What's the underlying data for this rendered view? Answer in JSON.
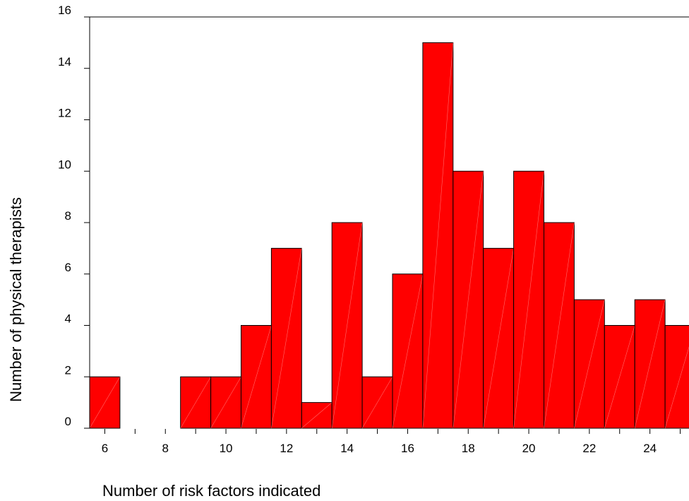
{
  "chart_data": {
    "type": "bar",
    "title": "",
    "xlabel": "Number of risk factors indicated",
    "ylabel": "Number of physical therapists",
    "bar_color": "#ff0000",
    "x": [
      6,
      7,
      8,
      9,
      10,
      11,
      12,
      13,
      14,
      15,
      16,
      17,
      18,
      19,
      20,
      21,
      22,
      23,
      24,
      25
    ],
    "values": [
      2,
      0,
      0,
      2,
      2,
      4,
      7,
      1,
      8,
      2,
      6,
      15,
      10,
      7,
      10,
      8,
      5,
      4,
      5,
      4
    ],
    "x_ticks": [
      "6",
      "8",
      "10",
      "12",
      "14",
      "16",
      "18",
      "20",
      "22",
      "24"
    ],
    "y_ticks": [
      "0",
      "2",
      "4",
      "6",
      "8",
      "10",
      "12",
      "14",
      "16"
    ],
    "ylim": [
      0,
      16
    ],
    "xlim": [
      5.5,
      25.5
    ],
    "grid": false
  }
}
